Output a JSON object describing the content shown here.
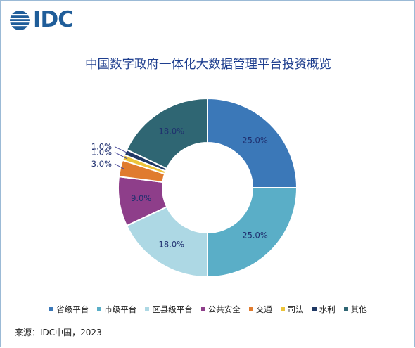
{
  "logo": {
    "text": "IDC"
  },
  "chart_data": {
    "type": "pie",
    "style": "donut",
    "title": "中国数字政府一体化大数据管理平台投资概览",
    "categories": [
      "省级平台",
      "市级平台",
      "区县级平台",
      "公共安全",
      "交通",
      "司法",
      "水利",
      "其他"
    ],
    "values": [
      25.0,
      25.0,
      18.0,
      9.0,
      3.0,
      1.0,
      1.0,
      18.0
    ],
    "data_labels": [
      "25.0%",
      "25.0%",
      "18.0%",
      "9.0%",
      "3.0%",
      "1.0%",
      "1.0%",
      "18.0%"
    ],
    "colors": [
      "#3b78b8",
      "#5aaec7",
      "#add8e4",
      "#8e3e8a",
      "#e07b2e",
      "#ecc43a",
      "#1f3864",
      "#2f6673"
    ],
    "legend_position": "bottom"
  },
  "source": "来源：IDC中国，2023"
}
